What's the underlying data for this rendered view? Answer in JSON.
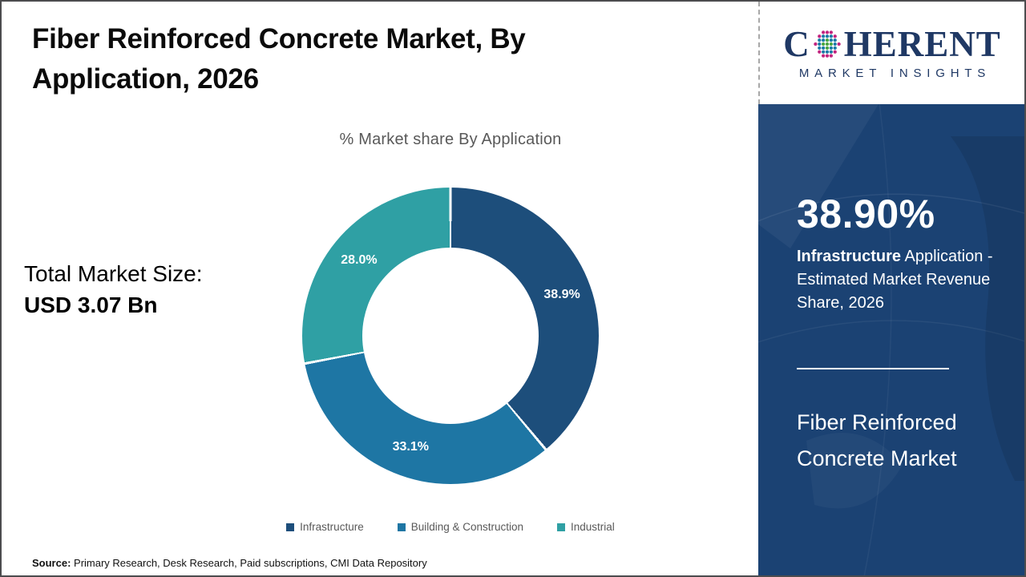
{
  "header": {
    "title": "Fiber Reinforced Concrete Market, By Application, 2026"
  },
  "logo": {
    "prefix": "C",
    "suffix": "HERENT",
    "subtitle": "MARKET INSIGHTS",
    "navy": "#1F3864",
    "globe_colors": {
      "inner": "#4CA743",
      "mid": "#1D7DA8",
      "outer": "#C2257F"
    }
  },
  "stats": {
    "label": "Total Market Size:",
    "value": "USD 3.07 Bn"
  },
  "chart_data": {
    "type": "pie",
    "subtype": "donut",
    "title": "% Market share By Application",
    "categories": [
      "Infrastructure",
      "Building & Construction",
      "Industrial"
    ],
    "values": [
      38.9,
      33.1,
      28.0
    ],
    "labels": [
      "38.9%",
      "33.1%",
      "28.0%"
    ],
    "colors": [
      "#1D4E7B",
      "#1E76A4",
      "#2FA0A4"
    ],
    "hole_ratio": 0.59,
    "start_angle_deg": 0,
    "direction": "clockwise",
    "legend_position": "bottom"
  },
  "sidebar": {
    "highlight_value": "38.90%",
    "highlight_bold": "Infrastructure",
    "highlight_rest": " Application - Estimated Market Revenue Share, 2026",
    "market_name": "Fiber Reinforced Concrete Market",
    "bg": "#1B4273"
  },
  "footer": {
    "source_label": "Source:",
    "source_text": " Primary Research, Desk Research, Paid subscriptions, CMI Data Repository"
  }
}
